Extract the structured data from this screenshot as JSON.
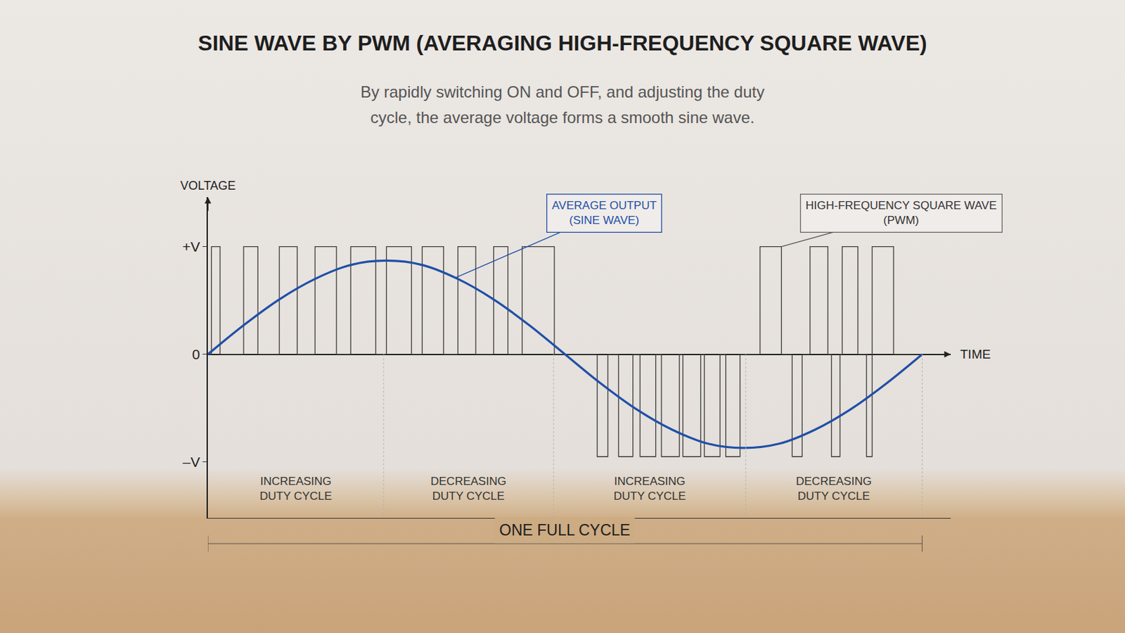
{
  "chart_data": {
    "type": "line",
    "title": "SINE WAVE BY PWM (AVERAGING HIGH-FREQUENCY SQUARE WAVE)",
    "subtitle": "By rapidly switching ON and OFF, and adjusting the duty cycle, the average voltage forms a smooth sine wave.",
    "y_label": "VOLTAGE",
    "x_label": "TIME",
    "xlim": [
      0,
      1.04
    ],
    "ylim": [
      -1.52,
      1.46
    ],
    "yticks": [
      {
        "value": 1,
        "label": "+V"
      },
      0,
      {
        "value": -1,
        "label": "–V"
      }
    ],
    "tick_labels": "y",
    "grid": false,
    "series": [
      {
        "name": "HIGH-FREQUENCY SQUARE WAVE (PWM)",
        "color": "#3a3a3a",
        "line_style": "step",
        "x": [
          0,
          0.005,
          0.017,
          0.05,
          0.07,
          0.1,
          0.125,
          0.15,
          0.18,
          0.2,
          0.235,
          0.25,
          0.285,
          0.3,
          0.33,
          0.35,
          0.375,
          0.4,
          0.42,
          0.44,
          0.485,
          0.545,
          0.56,
          0.575,
          0.595,
          0.605,
          0.627,
          0.635,
          0.66,
          0.665,
          0.69,
          0.695,
          0.717,
          0.725,
          0.745,
          0.773,
          0.803,
          0.818,
          0.832,
          0.843,
          0.868,
          0.873,
          0.885,
          0.888,
          0.91,
          0.922,
          0.93,
          0.96,
          1.0
        ],
        "values": [
          0,
          1,
          0,
          1,
          0,
          1,
          0,
          1,
          0,
          1,
          0,
          1,
          0,
          1,
          0,
          1,
          0,
          1,
          0,
          1,
          0,
          -0.95,
          0,
          -0.95,
          0,
          -0.95,
          0,
          -0.95,
          0,
          -0.95,
          0,
          -0.95,
          0,
          -0.95,
          0,
          1,
          0,
          -0.95,
          0,
          1,
          0,
          -0.95,
          0,
          1,
          0,
          -0.95,
          1,
          0,
          0
        ]
      },
      {
        "name": "AVERAGE OUTPUT (SINE WAVE)",
        "color": "#1f4fa8",
        "line_style": "solid",
        "x": [
          0,
          0.05,
          0.1,
          0.15,
          0.2,
          0.25,
          0.3,
          0.35,
          0.4,
          0.45,
          0.5,
          0.55,
          0.6,
          0.65,
          0.7,
          0.75,
          0.8,
          0.85,
          0.9,
          0.95,
          1.0
        ],
        "values": [
          0,
          0.27,
          0.51,
          0.7,
          0.83,
          0.87,
          0.83,
          0.7,
          0.51,
          0.27,
          0,
          -0.27,
          -0.51,
          -0.7,
          -0.83,
          -0.87,
          -0.83,
          -0.7,
          -0.51,
          -0.27,
          0
        ]
      }
    ],
    "regions": [
      {
        "label": "INCREASING DUTY CYCLE",
        "start": 0,
        "end": 0.246
      },
      {
        "label": "DECREASING DUTY CYCLE",
        "start": 0.246,
        "end": 0.484
      },
      {
        "label": "INCREASING DUTY CYCLE",
        "start": 0.484,
        "end": 0.753
      },
      {
        "label": "DECREASING DUTY CYCLE",
        "start": 0.753,
        "end": 1
      }
    ],
    "span": {
      "label": "ONE FULL CYCLE",
      "start": 0,
      "end": 1
    }
  }
}
